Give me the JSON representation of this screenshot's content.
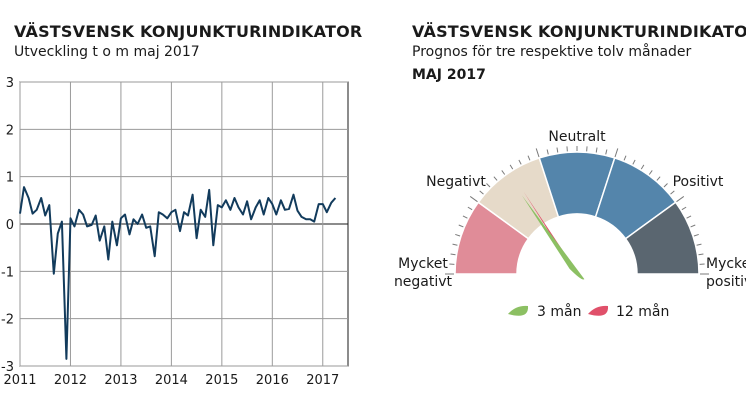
{
  "left": {
    "title": "VÄSTSVENSK KONJUNKTURINDIKATOR",
    "subtitle": "Utveckling t o m maj 2017"
  },
  "right": {
    "title": "VÄSTSVENSK KONJUNKTURINDIKATOR",
    "subtitle": "Prognos för tre respektive tolv månader",
    "month": "MAJ 2017"
  },
  "chart_data": [
    {
      "type": "line",
      "title": "VÄSTSVENSK KONJUNKTURINDIKATOR",
      "subtitle": "Utveckling t o m maj 2017",
      "xlabel": "",
      "ylabel": "",
      "ylim": [
        -3,
        3
      ],
      "yticks": [
        "3",
        "2",
        "1",
        "0",
        "-1",
        "-2",
        "-3"
      ],
      "xlim": [
        2011,
        2017.5
      ],
      "xticks": [
        "2011",
        "2012",
        "2013",
        "2014",
        "2015",
        "2016",
        "2017"
      ],
      "grid": true,
      "color": "#123b5c",
      "series": [
        {
          "values": [
            [
              2011.0,
              0.22
            ],
            [
              2011.08,
              0.78
            ],
            [
              2011.17,
              0.55
            ],
            [
              2011.25,
              0.22
            ],
            [
              2011.33,
              0.3
            ],
            [
              2011.42,
              0.55
            ],
            [
              2011.5,
              0.18
            ],
            [
              2011.58,
              0.4
            ],
            [
              2011.67,
              -1.05
            ],
            [
              2011.75,
              -0.2
            ],
            [
              2011.83,
              0.05
            ],
            [
              2011.92,
              -2.85
            ],
            [
              2012.0,
              0.12
            ],
            [
              2012.08,
              -0.05
            ],
            [
              2012.17,
              0.3
            ],
            [
              2012.25,
              0.2
            ],
            [
              2012.33,
              -0.05
            ],
            [
              2012.42,
              -0.02
            ],
            [
              2012.5,
              0.18
            ],
            [
              2012.58,
              -0.35
            ],
            [
              2012.67,
              -0.05
            ],
            [
              2012.75,
              -0.75
            ],
            [
              2012.83,
              0.05
            ],
            [
              2012.92,
              -0.45
            ],
            [
              2013.0,
              0.12
            ],
            [
              2013.08,
              0.2
            ],
            [
              2013.17,
              -0.22
            ],
            [
              2013.25,
              0.1
            ],
            [
              2013.33,
              0.0
            ],
            [
              2013.42,
              0.2
            ],
            [
              2013.5,
              -0.08
            ],
            [
              2013.58,
              -0.05
            ],
            [
              2013.67,
              -0.68
            ],
            [
              2013.75,
              0.25
            ],
            [
              2013.83,
              0.2
            ],
            [
              2013.92,
              0.12
            ],
            [
              2014.0,
              0.25
            ],
            [
              2014.08,
              0.3
            ],
            [
              2014.17,
              -0.15
            ],
            [
              2014.25,
              0.25
            ],
            [
              2014.33,
              0.18
            ],
            [
              2014.42,
              0.62
            ],
            [
              2014.5,
              -0.3
            ],
            [
              2014.58,
              0.3
            ],
            [
              2014.67,
              0.15
            ],
            [
              2014.75,
              0.72
            ],
            [
              2014.83,
              -0.45
            ],
            [
              2014.92,
              0.4
            ],
            [
              2015.0,
              0.35
            ],
            [
              2015.08,
              0.5
            ],
            [
              2015.17,
              0.3
            ],
            [
              2015.25,
              0.55
            ],
            [
              2015.33,
              0.35
            ],
            [
              2015.42,
              0.2
            ],
            [
              2015.5,
              0.48
            ],
            [
              2015.58,
              0.1
            ],
            [
              2015.67,
              0.35
            ],
            [
              2015.75,
              0.5
            ],
            [
              2015.83,
              0.2
            ],
            [
              2015.92,
              0.55
            ],
            [
              2016.0,
              0.42
            ],
            [
              2016.08,
              0.2
            ],
            [
              2016.17,
              0.5
            ],
            [
              2016.25,
              0.3
            ],
            [
              2016.33,
              0.32
            ],
            [
              2016.42,
              0.62
            ],
            [
              2016.5,
              0.28
            ],
            [
              2016.58,
              0.15
            ],
            [
              2016.67,
              0.1
            ],
            [
              2016.75,
              0.1
            ],
            [
              2016.83,
              0.05
            ],
            [
              2016.92,
              0.42
            ],
            [
              2017.0,
              0.42
            ],
            [
              2017.08,
              0.25
            ],
            [
              2017.17,
              0.45
            ],
            [
              2017.25,
              0.55
            ]
          ]
        }
      ]
    },
    {
      "type": "gauge",
      "title": "VÄSTSVENSK KONJUNKTURINDIKATOR",
      "subtitle": "Prognos för tre respektive tolv månader",
      "period": "MAJ 2017",
      "segments": [
        {
          "label": "Mycket negativt",
          "color": "#e08c98"
        },
        {
          "label": "Negativt",
          "color": "#e6dac9"
        },
        {
          "label": "Neutralt",
          "color": ""
        },
        {
          "label": "Positivt",
          "color": "#5485ab"
        },
        {
          "label": "Mycket positivt",
          "color": "#5a6670"
        }
      ],
      "labels": [
        "Mycket",
        "negativt",
        "Negativt",
        "Neutralt",
        "Positivt",
        "Mycket",
        "positivt"
      ],
      "needles": [
        {
          "name": "3 mån",
          "angle_deg": 55,
          "color": "#8cc063"
        },
        {
          "name": "12 mån",
          "angle_deg": 57,
          "color": "#e0506a"
        }
      ],
      "legend": [
        "3 mån",
        "12 mån"
      ],
      "legend_placement": "bottom"
    }
  ]
}
